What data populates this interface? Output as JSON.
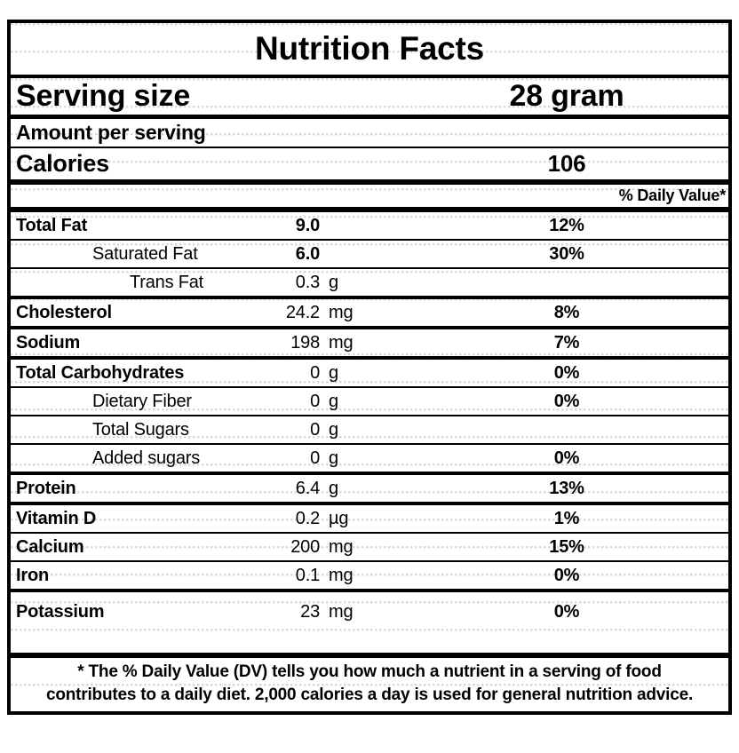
{
  "label": {
    "title": "Nutrition Facts",
    "serving": {
      "label": "Serving size",
      "value": "28 gram"
    },
    "amount_per_serving": "Amount per serving",
    "calories": {
      "label": "Calories",
      "value": "106"
    },
    "daily_value_header": "% Daily Value*",
    "rows": [
      {
        "name": "Total Fat",
        "amount": "9.0",
        "unit": "",
        "dv": "12%",
        "level": 0,
        "bold_amount": true,
        "sep": "thin"
      },
      {
        "name": "Saturated Fat",
        "amount": "6.0",
        "unit": "",
        "dv": "30%",
        "level": 1,
        "bold_amount": true,
        "sep": "thin"
      },
      {
        "name": "Trans Fat",
        "amount": "0.3",
        "unit": "g",
        "dv": "",
        "level": 2,
        "bold_amount": false,
        "sep": "thick"
      },
      {
        "name": "Cholesterol",
        "amount": "24.2",
        "unit": "mg",
        "dv": "8%",
        "level": 0,
        "bold_amount": false,
        "sep": "thick"
      },
      {
        "name": "Sodium",
        "amount": "198",
        "unit": "mg",
        "dv": "7%",
        "level": 0,
        "bold_amount": false,
        "sep": "thick"
      },
      {
        "name": "Total Carbohydrates",
        "amount": "0",
        "unit": "g",
        "dv": "0%",
        "level": 0,
        "bold_amount": false,
        "sep": "thin"
      },
      {
        "name": "Dietary Fiber",
        "amount": "0",
        "unit": "g",
        "dv": "0%",
        "level": 1,
        "bold_amount": false,
        "sep": "thin"
      },
      {
        "name": "Total Sugars",
        "amount": "0",
        "unit": "g",
        "dv": "",
        "level": 1,
        "bold_amount": false,
        "sep": "thin"
      },
      {
        "name": "Added sugars",
        "amount": "0",
        "unit": "g",
        "dv": "0%",
        "level": 1,
        "bold_amount": false,
        "sep": "thick"
      },
      {
        "name": "Protein",
        "amount": "6.4",
        "unit": "g",
        "dv": "13%",
        "level": 0,
        "bold_amount": false,
        "sep": "thick"
      },
      {
        "name": "Vitamin D",
        "amount": "0.2",
        "unit": "µg",
        "dv": "1%",
        "level": 0,
        "bold_amount": false,
        "sep": "thin"
      },
      {
        "name": "Calcium",
        "amount": "200",
        "unit": "mg",
        "dv": "15%",
        "level": 0,
        "bold_amount": false,
        "sep": "thin"
      },
      {
        "name": "Iron",
        "amount": "0.1",
        "unit": "mg",
        "dv": "0%",
        "level": 0,
        "bold_amount": false,
        "sep": "thick"
      },
      {
        "name": "Potassium",
        "amount": "23",
        "unit": "mg",
        "dv": "0%",
        "level": 0,
        "bold_amount": false,
        "sep": "none",
        "tall": true
      }
    ],
    "footnote_lines": [
      "* The % Daily Value (DV) tells you how much a nutrient in a serving of food",
      "contributes to a daily diet. 2,000 calories a day is used for general nutrition advice."
    ],
    "colors": {
      "ink": "#000000",
      "paper": "#ffffff"
    }
  }
}
